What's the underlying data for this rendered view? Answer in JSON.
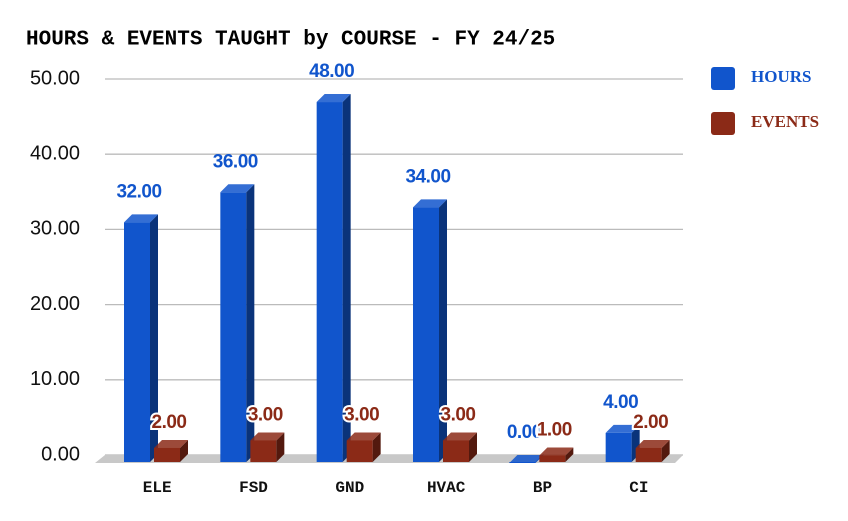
{
  "chart_data": {
    "type": "bar",
    "title": "HOURS & EVENTS TAUGHT by COURSE - FY 24/25",
    "categories": [
      "ELE",
      "FSD",
      "GND",
      "HVAC",
      "BP",
      "CI"
    ],
    "series": [
      {
        "name": "HOURS",
        "color": "#1155cc",
        "values": [
          32,
          36,
          48,
          34,
          0,
          4
        ],
        "value_labels": [
          "32.00",
          "36.00",
          "48.00",
          "34.00",
          "0.00",
          "4.00"
        ]
      },
      {
        "name": "EVENTS",
        "color": "#8b2a17",
        "values": [
          2,
          3,
          3,
          3,
          1,
          2
        ],
        "value_labels": [
          "2.00",
          "3.00",
          "3.00",
          "3.00",
          "1.00",
          "2.00"
        ]
      }
    ],
    "ylim": [
      0,
      50
    ],
    "yticks": [
      {
        "value": 0,
        "label": "0.00"
      },
      {
        "value": 10,
        "label": "10.00"
      },
      {
        "value": 20,
        "label": "20.00"
      },
      {
        "value": 30,
        "label": "30.00"
      },
      {
        "value": 40,
        "label": "40.00"
      },
      {
        "value": 50,
        "label": "50.00"
      }
    ],
    "grid": true,
    "legend": "right"
  }
}
